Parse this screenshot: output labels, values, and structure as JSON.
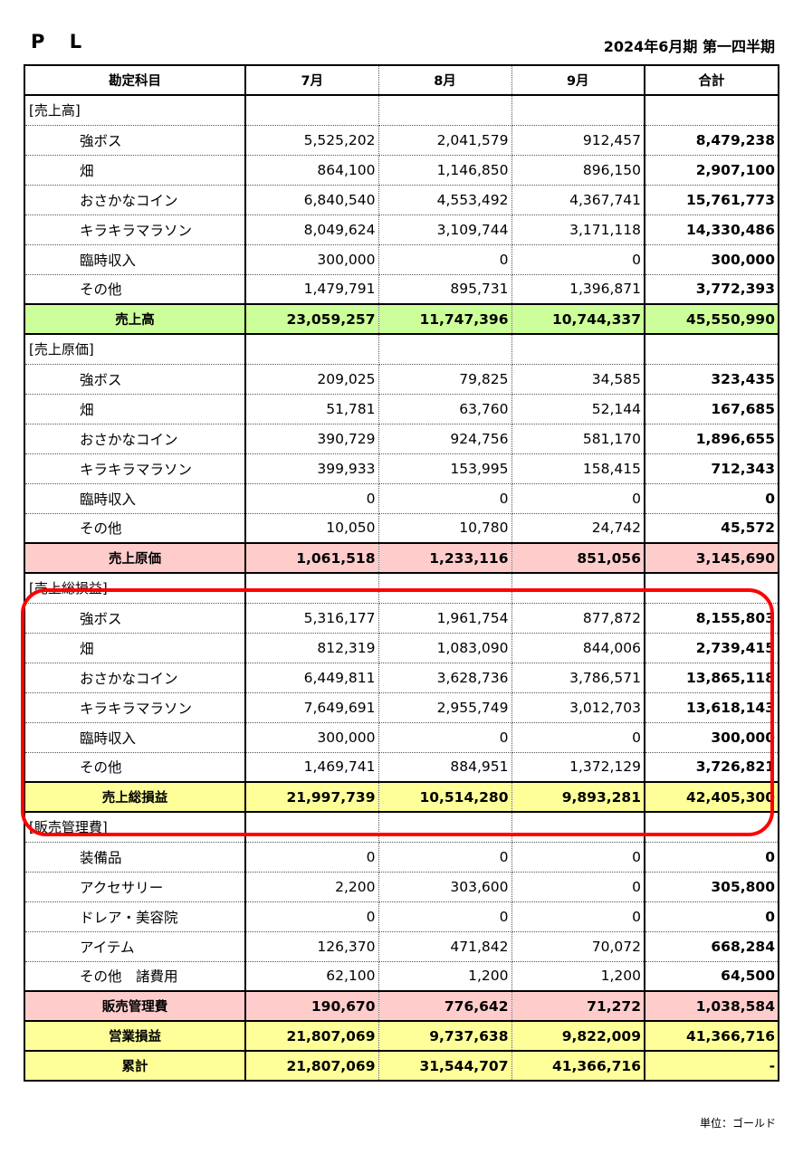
{
  "title": "P L",
  "period": "2024年6月期 第一四半期",
  "headers": [
    "勘定科目",
    "7月",
    "8月",
    "9月",
    "合計"
  ],
  "unit_note": "単位：ゴールド",
  "highlight_color": "#ff0000",
  "colors": {
    "green": "#ccff99",
    "pink": "#ffcccc",
    "yellow": "#ffff99"
  },
  "rows": [
    {
      "type": "section",
      "label": "[売上高]"
    },
    {
      "type": "item",
      "label": "強ボス",
      "values": [
        "5,525,202",
        "2,041,579",
        "912,457",
        "8,479,238"
      ]
    },
    {
      "type": "item",
      "label": "畑",
      "values": [
        "864,100",
        "1,146,850",
        "896,150",
        "2,907,100"
      ]
    },
    {
      "type": "item",
      "label": "おさかなコイン",
      "values": [
        "6,840,540",
        "4,553,492",
        "4,367,741",
        "15,761,773"
      ]
    },
    {
      "type": "item",
      "label": "キラキラマラソン",
      "values": [
        "8,049,624",
        "3,109,744",
        "3,171,118",
        "14,330,486"
      ]
    },
    {
      "type": "item",
      "label": "臨時収入",
      "values": [
        "300,000",
        "0",
        "0",
        "300,000"
      ]
    },
    {
      "type": "item",
      "label": "その他",
      "values": [
        "1,479,791",
        "895,731",
        "1,396,871",
        "3,772,393"
      ]
    },
    {
      "type": "total",
      "color": "green",
      "label": "売上高",
      "values": [
        "23,059,257",
        "11,747,396",
        "10,744,337",
        "45,550,990"
      ]
    },
    {
      "type": "section",
      "label": "[売上原価]"
    },
    {
      "type": "item",
      "label": "強ボス",
      "values": [
        "209,025",
        "79,825",
        "34,585",
        "323,435"
      ]
    },
    {
      "type": "item",
      "label": "畑",
      "values": [
        "51,781",
        "63,760",
        "52,144",
        "167,685"
      ]
    },
    {
      "type": "item",
      "label": "おさかなコイン",
      "values": [
        "390,729",
        "924,756",
        "581,170",
        "1,896,655"
      ]
    },
    {
      "type": "item",
      "label": "キラキラマラソン",
      "values": [
        "399,933",
        "153,995",
        "158,415",
        "712,343"
      ]
    },
    {
      "type": "item",
      "label": "臨時収入",
      "values": [
        "0",
        "0",
        "0",
        "0"
      ]
    },
    {
      "type": "item",
      "label": "その他",
      "values": [
        "10,050",
        "10,780",
        "24,742",
        "45,572"
      ]
    },
    {
      "type": "total",
      "color": "pink",
      "label": "売上原価",
      "values": [
        "1,061,518",
        "1,233,116",
        "851,056",
        "3,145,690"
      ]
    },
    {
      "type": "section",
      "label": "[売上総損益]"
    },
    {
      "type": "item",
      "label": "強ボス",
      "values": [
        "5,316,177",
        "1,961,754",
        "877,872",
        "8,155,803"
      ]
    },
    {
      "type": "item",
      "label": "畑",
      "values": [
        "812,319",
        "1,083,090",
        "844,006",
        "2,739,415"
      ]
    },
    {
      "type": "item",
      "label": "おさかなコイン",
      "values": [
        "6,449,811",
        "3,628,736",
        "3,786,571",
        "13,865,118"
      ]
    },
    {
      "type": "item",
      "label": "キラキラマラソン",
      "values": [
        "7,649,691",
        "2,955,749",
        "3,012,703",
        "13,618,143"
      ]
    },
    {
      "type": "item",
      "label": "臨時収入",
      "values": [
        "300,000",
        "0",
        "0",
        "300,000"
      ]
    },
    {
      "type": "item",
      "label": "その他",
      "values": [
        "1,469,741",
        "884,951",
        "1,372,129",
        "3,726,821"
      ]
    },
    {
      "type": "total",
      "color": "yellow",
      "label": "売上総損益",
      "values": [
        "21,997,739",
        "10,514,280",
        "9,893,281",
        "42,405,300"
      ]
    },
    {
      "type": "section",
      "label": "[販売管理費]"
    },
    {
      "type": "item",
      "label": "装備品",
      "values": [
        "0",
        "0",
        "0",
        "0"
      ]
    },
    {
      "type": "item",
      "label": "アクセサリー",
      "values": [
        "2,200",
        "303,600",
        "0",
        "305,800"
      ]
    },
    {
      "type": "item",
      "label": "ドレア・美容院",
      "values": [
        "0",
        "0",
        "0",
        "0"
      ]
    },
    {
      "type": "item",
      "label": "アイテム",
      "values": [
        "126,370",
        "471,842",
        "70,072",
        "668,284"
      ]
    },
    {
      "type": "item",
      "label": "その他　諸費用",
      "values": [
        "62,100",
        "1,200",
        "1,200",
        "64,500"
      ]
    },
    {
      "type": "total",
      "color": "pink",
      "label": "販売管理費",
      "values": [
        "190,670",
        "776,642",
        "71,272",
        "1,038,584"
      ]
    },
    {
      "type": "total",
      "color": "yellow",
      "label": "営業損益",
      "values": [
        "21,807,069",
        "9,737,638",
        "9,822,009",
        "41,366,716"
      ]
    },
    {
      "type": "total",
      "color": "yellow",
      "label": "累計",
      "values": [
        "21,807,069",
        "31,544,707",
        "41,366,716",
        "-"
      ]
    }
  ]
}
